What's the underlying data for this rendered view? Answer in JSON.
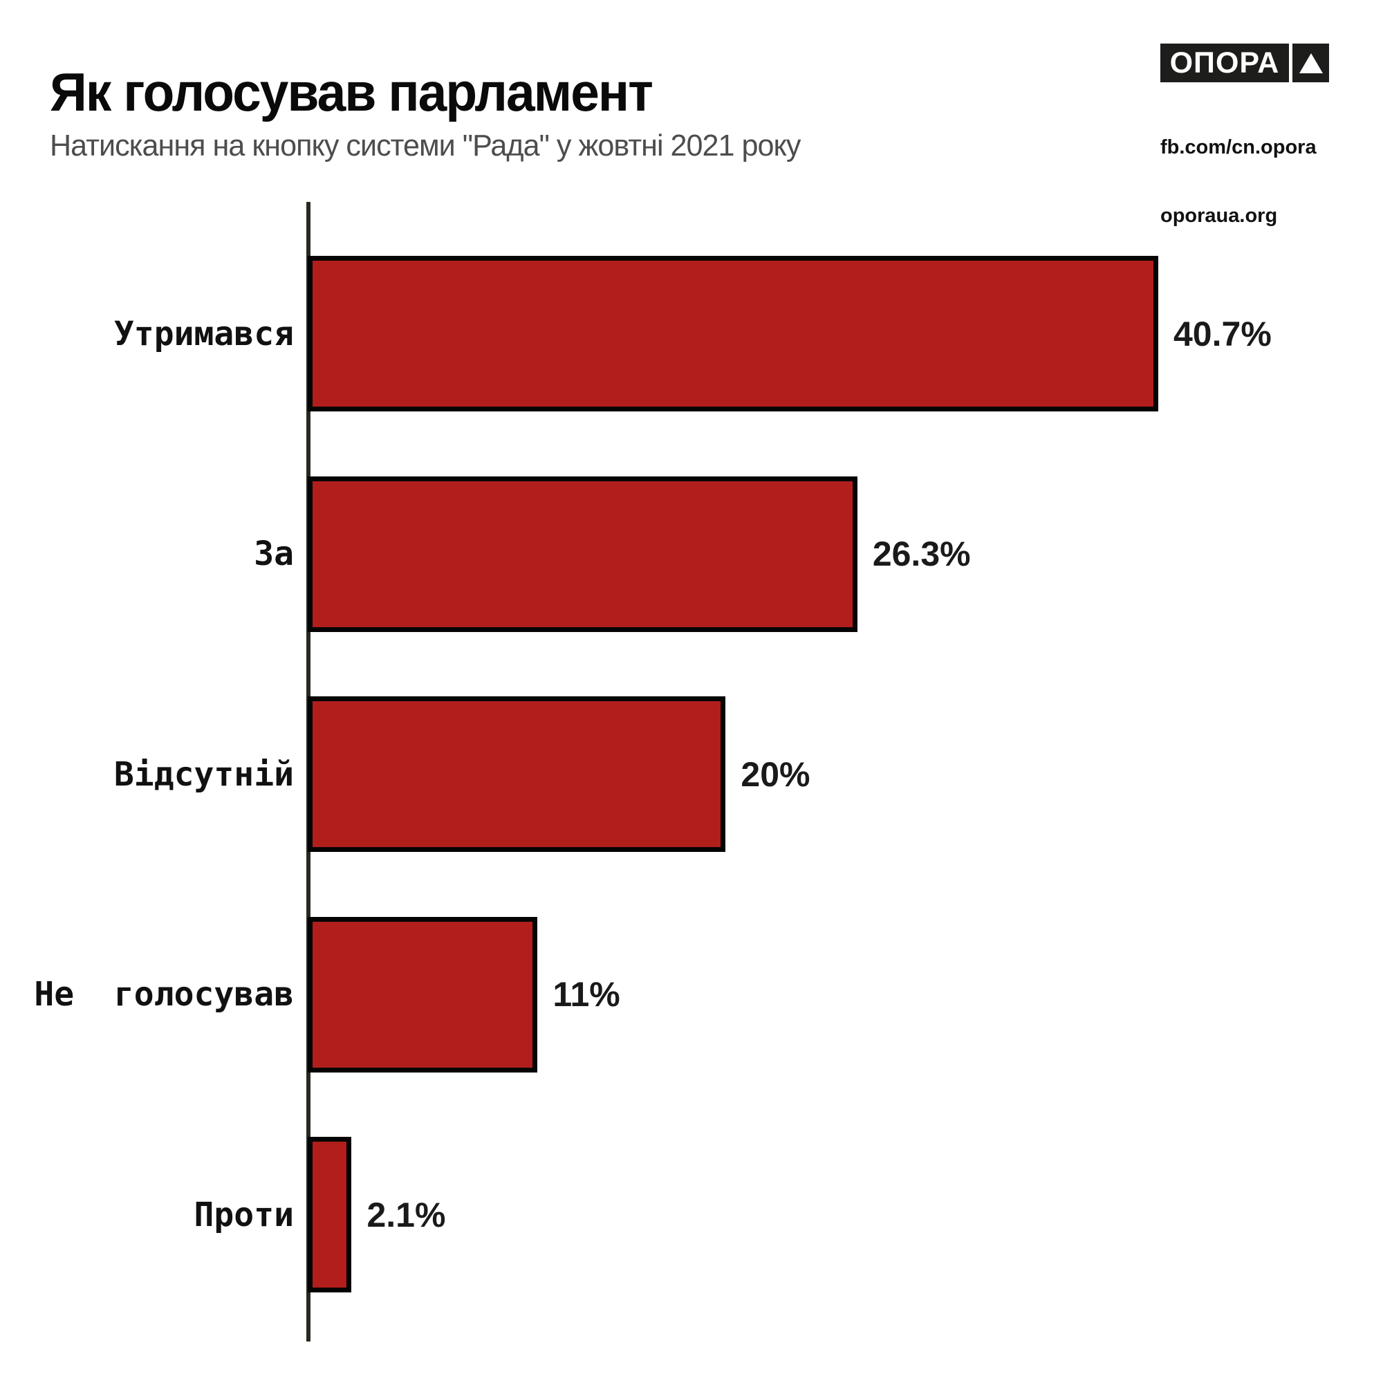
{
  "header": {
    "title": "Як голосував парламент",
    "subtitle": "Натискання на кнопку системи \"Рада\" у жовтні 2021 року"
  },
  "logo": {
    "brand": "ОПОРА",
    "triangle_icon": "triangle-up",
    "link_fb": "fb.com/cn.opora",
    "link_site": "oporaua.org"
  },
  "chart_data": {
    "type": "bar",
    "orientation": "horizontal",
    "title": "Як голосував парламент",
    "subtitle": "Натискання на кнопку системи \"Рада\" у жовтні 2021 року",
    "categories": [
      "Утримався",
      "За",
      "Відсутній",
      "Не  голосував",
      "Проти"
    ],
    "values": [
      40.7,
      26.3,
      20,
      11,
      2.1
    ],
    "value_labels": [
      "40.7%",
      "26.3%",
      "20%",
      "11%",
      "2.1%"
    ],
    "unit": "%",
    "xlim": [
      0,
      42
    ],
    "grid": false,
    "legend": "none",
    "colors": {
      "bar": "#b21e1b",
      "bar_border": "#050505",
      "axis": "#262a20",
      "title_text": "#0a0a0a",
      "subtitle_text": "#4d4d4d",
      "label_text": "#111111"
    }
  }
}
